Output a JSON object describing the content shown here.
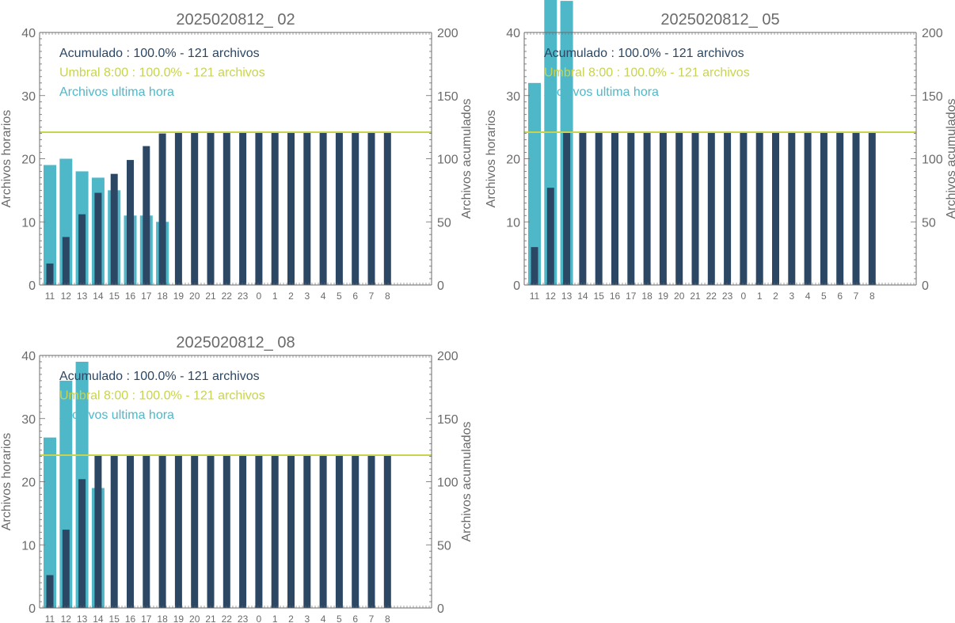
{
  "colors": {
    "hourly": "#4fb8c8",
    "cumulative": "#2b4764",
    "threshold": "#c8d44e",
    "axis": "#6b6b6b"
  },
  "chart_data": [
    {
      "type": "bar",
      "title": "2025020812_ 02",
      "ylabel_left": "Archivos horarios",
      "ylabel_right": "Archivos acumulados",
      "ylim_left": [
        0,
        40
      ],
      "ylim_right": [
        0,
        200
      ],
      "yticks_left": [
        "0",
        "10",
        "20",
        "30",
        "40"
      ],
      "yticks_right": [
        "0",
        "50",
        "100",
        "150",
        "200"
      ],
      "categories": [
        "11",
        "12",
        "13",
        "14",
        "15",
        "16",
        "17",
        "18",
        "19",
        "20",
        "21",
        "22",
        "23",
        "0",
        "1",
        "2",
        "3",
        "4",
        "5",
        "6",
        "7",
        "8"
      ],
      "legend": [
        "Acumulado : 100.0% - 121 archivos",
        "Umbral 8:00 : 100.0% - 121 archivos",
        "Archivos ultima hora"
      ],
      "threshold": 121,
      "series": [
        {
          "name": "Archivos ultima hora",
          "values": [
            19,
            20,
            18,
            17,
            15,
            11,
            11,
            10,
            null,
            null,
            null,
            null,
            null,
            null,
            null,
            null,
            null,
            null,
            null,
            null,
            null,
            null
          ]
        },
        {
          "name": "Acumulado",
          "values": [
            17,
            38,
            56,
            73,
            88,
            99,
            110,
            120,
            121,
            121,
            121,
            121,
            121,
            121,
            121,
            121,
            121,
            121,
            121,
            121,
            121,
            121
          ]
        }
      ]
    },
    {
      "type": "bar",
      "title": "2025020812_ 05",
      "ylabel_left": "Archivos horarios",
      "ylabel_right": "Archivos acumulados",
      "ylim_left": [
        0,
        40
      ],
      "ylim_right": [
        0,
        200
      ],
      "yticks_left": [
        "0",
        "10",
        "20",
        "30",
        "40"
      ],
      "yticks_right": [
        "0",
        "50",
        "100",
        "150",
        "200"
      ],
      "categories": [
        "11",
        "12",
        "13",
        "14",
        "15",
        "16",
        "17",
        "18",
        "19",
        "20",
        "21",
        "22",
        "23",
        "0",
        "1",
        "2",
        "3",
        "4",
        "5",
        "6",
        "7",
        "8"
      ],
      "legend": [
        "Acumulado : 100.0% - 121 archivos",
        "Umbral 8:00 : 100.0% - 121 archivos",
        "Archivos ultima hora"
      ],
      "threshold": 121,
      "series": [
        {
          "name": "Archivos ultima hora",
          "values": [
            32,
            46,
            45,
            null,
            null,
            null,
            null,
            null,
            null,
            null,
            null,
            null,
            null,
            null,
            null,
            null,
            null,
            null,
            null,
            null,
            null,
            null
          ]
        },
        {
          "name": "Acumulado",
          "values": [
            30,
            77,
            121,
            121,
            121,
            121,
            121,
            121,
            121,
            121,
            121,
            121,
            121,
            121,
            121,
            121,
            121,
            121,
            121,
            121,
            121,
            121
          ]
        }
      ]
    },
    {
      "type": "bar",
      "title": "2025020812_ 08",
      "ylabel_left": "Archivos horarios",
      "ylabel_right": "Archivos acumulados",
      "ylim_left": [
        0,
        40
      ],
      "ylim_right": [
        0,
        200
      ],
      "yticks_left": [
        "0",
        "10",
        "20",
        "30",
        "40"
      ],
      "yticks_right": [
        "0",
        "50",
        "100",
        "150",
        "200"
      ],
      "categories": [
        "11",
        "12",
        "13",
        "14",
        "15",
        "16",
        "17",
        "18",
        "19",
        "20",
        "21",
        "22",
        "23",
        "0",
        "1",
        "2",
        "3",
        "4",
        "5",
        "6",
        "7",
        "8"
      ],
      "legend": [
        "Acumulado : 100.0% - 121 archivos",
        "Umbral 8:00 : 100.0% - 121 archivos",
        "Archivos ultima hora"
      ],
      "threshold": 121,
      "series": [
        {
          "name": "Archivos ultima hora",
          "values": [
            27,
            36,
            39,
            19,
            null,
            null,
            null,
            null,
            null,
            null,
            null,
            null,
            null,
            null,
            null,
            null,
            null,
            null,
            null,
            null,
            null,
            null
          ]
        },
        {
          "name": "Acumulado",
          "values": [
            26,
            62,
            102,
            121,
            121,
            121,
            121,
            121,
            121,
            121,
            121,
            121,
            121,
            121,
            121,
            121,
            121,
            121,
            121,
            121,
            121,
            121
          ]
        }
      ]
    }
  ]
}
